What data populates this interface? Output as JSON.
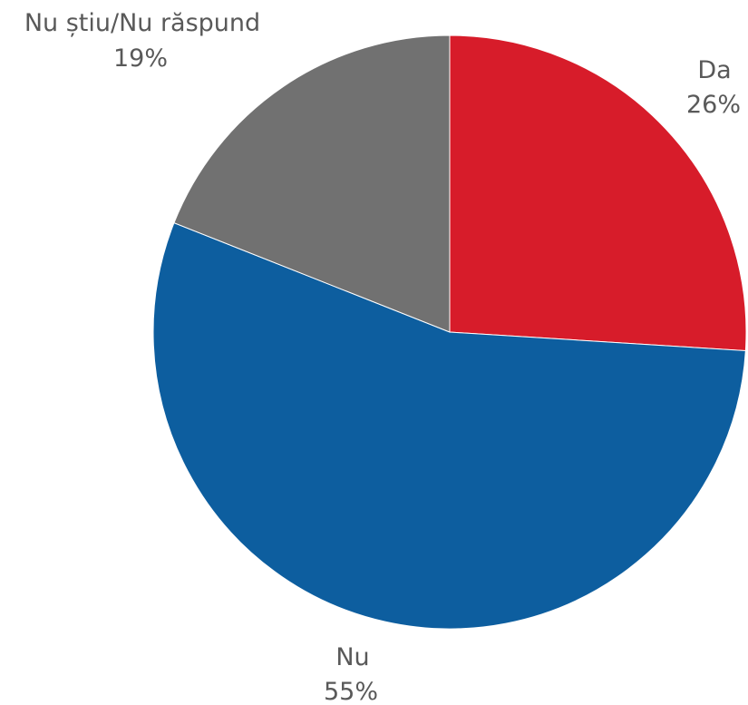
{
  "chart_data": {
    "type": "pie",
    "categories": [
      "Da",
      "Nu",
      "Nu știu/Nu răspund"
    ],
    "values": [
      26,
      55,
      19
    ],
    "value_labels": [
      "26%",
      "55%",
      "19%"
    ],
    "colors": [
      "#d71c2a",
      "#0d5e9f",
      "#717171"
    ],
    "title": "",
    "legend": "none"
  }
}
